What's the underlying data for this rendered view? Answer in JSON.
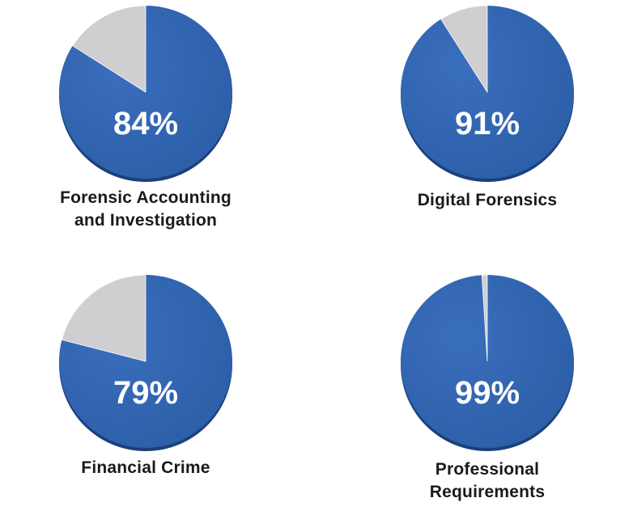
{
  "colors": {
    "filled": "#2c5ea8",
    "filled_dark": "#1c3f7a",
    "remainder": "#cfcfd1",
    "background": "#ffffff",
    "caption": "#1a1a1a",
    "percent_text": "#ffffff"
  },
  "chart_data": [
    {
      "type": "pie",
      "value_percent": 84,
      "label": "84%",
      "caption": [
        "Forensic Accounting",
        "and Investigation"
      ]
    },
    {
      "type": "pie",
      "value_percent": 91,
      "label": "91%",
      "caption": [
        "Digital Forensics"
      ]
    },
    {
      "type": "pie",
      "value_percent": 79,
      "label": "79%",
      "caption": [
        "Financial Crime"
      ]
    },
    {
      "type": "pie",
      "value_percent": 99,
      "label": "99%",
      "caption": [
        "Professional",
        "Requirements"
      ]
    }
  ]
}
